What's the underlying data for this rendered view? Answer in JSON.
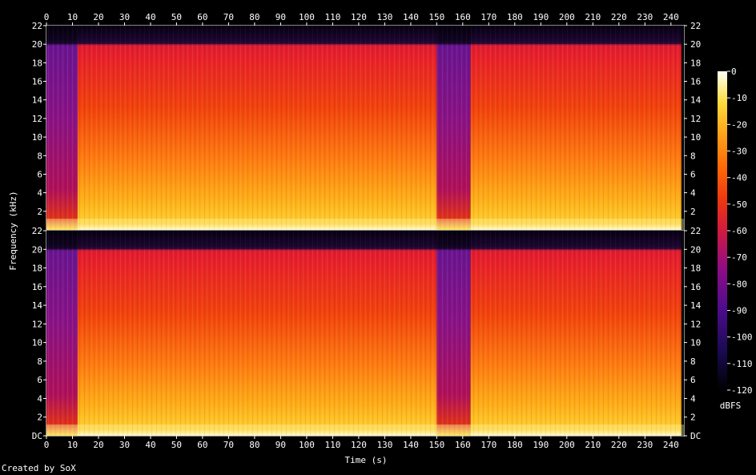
{
  "chart_data": {
    "type": "heatmap",
    "title": "",
    "xlabel": "Time (s)",
    "ylabel": "Frequency (kHz)",
    "x_ticks": [
      0,
      10,
      20,
      30,
      40,
      50,
      60,
      70,
      80,
      90,
      100,
      110,
      120,
      130,
      140,
      150,
      160,
      170,
      180,
      190,
      200,
      210,
      220,
      230,
      240
    ],
    "x_range": [
      0,
      245
    ],
    "y_ticks": [
      {
        "value": 0,
        "label": "DC"
      },
      {
        "value": 2,
        "label": "2"
      },
      {
        "value": 4,
        "label": "4"
      },
      {
        "value": 6,
        "label": "6"
      },
      {
        "value": 8,
        "label": "8"
      },
      {
        "value": 10,
        "label": "10"
      },
      {
        "value": 12,
        "label": "12"
      },
      {
        "value": 14,
        "label": "14"
      },
      {
        "value": 16,
        "label": "16"
      },
      {
        "value": 18,
        "label": "18"
      },
      {
        "value": 20,
        "label": "20"
      },
      {
        "value": 22,
        "label": "22"
      }
    ],
    "y_range": [
      0,
      22
    ],
    "channels": 2,
    "colorbar": {
      "unit": "dBFS",
      "ticks": [
        0,
        -10,
        -20,
        -30,
        -40,
        -50,
        -60,
        -70,
        -80,
        -90,
        -100,
        -110,
        -120
      ],
      "range": [
        -120,
        0
      ]
    },
    "segments": [
      {
        "start": 0,
        "end": 12,
        "level": "quiet"
      },
      {
        "start": 12,
        "end": 150,
        "level": "loud"
      },
      {
        "start": 150,
        "end": 163,
        "level": "quiet"
      },
      {
        "start": 163,
        "end": 244,
        "level": "loud"
      }
    ],
    "bandwidth_cutoff_khz": 20
  },
  "footer": {
    "credit": "Created by SoX"
  }
}
